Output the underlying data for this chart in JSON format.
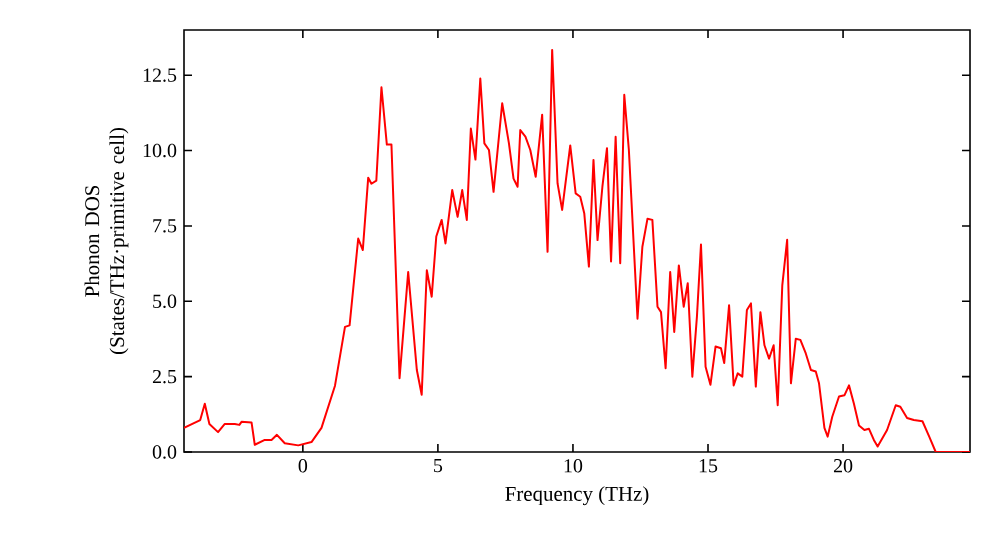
{
  "chart_data": {
    "type": "line",
    "xlabel": "Frequency (THz)",
    "ylabel": "Phonon DOS (States/THz·primitive cell)",
    "xlim": [
      -4.4,
      24.7
    ],
    "ylim": [
      0,
      14
    ],
    "xticks": [
      0,
      5,
      10,
      15,
      20
    ],
    "yticks": [
      {
        "value": 0,
        "label": "0.0"
      },
      {
        "value": 2.5,
        "label": "2.5"
      },
      {
        "value": 5,
        "label": "5.0"
      },
      {
        "value": 7.5,
        "label": "7.5"
      },
      {
        "value": 10,
        "label": "10.0"
      },
      {
        "value": 12.5,
        "label": "12.5"
      }
    ],
    "grid": false,
    "marker": "none",
    "line_style": "solid",
    "series": [
      {
        "color": "#ff0000",
        "x": [
          -4.4,
          -3.8,
          -3.63,
          -3.46,
          -3.14,
          -2.89,
          -2.52,
          -2.35,
          -2.27,
          -1.9,
          -1.78,
          -1.41,
          -1.16,
          -0.96,
          -0.67,
          -0.17,
          0.32,
          0.69,
          1.19,
          1.56,
          1.73,
          2.05,
          2.22,
          2.42,
          2.54,
          2.72,
          2.91,
          3.11,
          3.28,
          3.58,
          3.9,
          4.22,
          4.4,
          4.59,
          4.77,
          4.94,
          5.14,
          5.28,
          5.53,
          5.73,
          5.9,
          6.07,
          6.22,
          6.39,
          6.57,
          6.72,
          6.89,
          7.06,
          7.38,
          7.63,
          7.8,
          7.95,
          8.05,
          8.24,
          8.42,
          8.62,
          8.86,
          9.06,
          9.23,
          9.43,
          9.6,
          9.9,
          10.1,
          10.27,
          10.42,
          10.59,
          10.76,
          10.91,
          11.09,
          11.26,
          11.41,
          11.58,
          11.75,
          11.9,
          12.07,
          12.39,
          12.57,
          12.76,
          12.94,
          13.13,
          13.26,
          13.43,
          13.6,
          13.75,
          13.92,
          14.1,
          14.25,
          14.42,
          14.59,
          14.74,
          14.91,
          15.09,
          15.28,
          15.48,
          15.6,
          15.78,
          15.95,
          16.1,
          16.27,
          16.44,
          16.59,
          16.77,
          16.94,
          17.09,
          17.26,
          17.43,
          17.58,
          17.75,
          17.93,
          18.07,
          18.25,
          18.42,
          18.62,
          18.81,
          18.99,
          19.11,
          19.31,
          19.43,
          19.6,
          19.85,
          20.05,
          20.22,
          20.4,
          20.59,
          20.79,
          20.96,
          21.14,
          21.28,
          21.63,
          21.95,
          22.12,
          22.37,
          22.62,
          22.94,
          23.19,
          23.43,
          24.7
        ],
        "values": [
          0.8,
          1.06,
          1.6,
          0.93,
          0.66,
          0.93,
          0.93,
          0.9,
          1.0,
          0.98,
          0.24,
          0.4,
          0.4,
          0.57,
          0.29,
          0.22,
          0.33,
          0.8,
          2.2,
          4.15,
          4.2,
          7.08,
          6.7,
          9.1,
          8.9,
          9.0,
          12.1,
          10.2,
          10.2,
          2.45,
          5.97,
          2.72,
          1.9,
          6.03,
          5.15,
          7.15,
          7.7,
          6.92,
          8.69,
          7.8,
          8.69,
          7.7,
          10.73,
          9.7,
          12.39,
          10.24,
          10.02,
          8.63,
          11.57,
          10.24,
          9.07,
          8.8,
          10.68,
          10.46,
          10.02,
          9.13,
          11.19,
          6.64,
          13.34,
          8.91,
          8.03,
          10.17,
          8.58,
          8.47,
          7.91,
          6.15,
          9.69,
          7.03,
          8.8,
          10.08,
          6.32,
          10.46,
          6.26,
          11.85,
          10.02,
          4.42,
          6.81,
          7.74,
          7.7,
          4.82,
          4.64,
          2.78,
          5.97,
          3.98,
          6.19,
          4.82,
          5.6,
          2.5,
          4.49,
          6.88,
          2.83,
          2.23,
          3.5,
          3.44,
          2.95,
          4.87,
          2.21,
          2.61,
          2.5,
          4.71,
          4.93,
          2.17,
          4.64,
          3.54,
          3.1,
          3.54,
          1.55,
          5.53,
          7.04,
          2.28,
          3.76,
          3.72,
          3.27,
          2.72,
          2.67,
          2.28,
          0.8,
          0.51,
          1.17,
          1.84,
          1.88,
          2.21,
          1.61,
          0.88,
          0.73,
          0.77,
          0.4,
          0.18,
          0.73,
          1.55,
          1.5,
          1.13,
          1.06,
          1.02,
          0.51,
          0.0,
          0.0
        ]
      }
    ]
  }
}
